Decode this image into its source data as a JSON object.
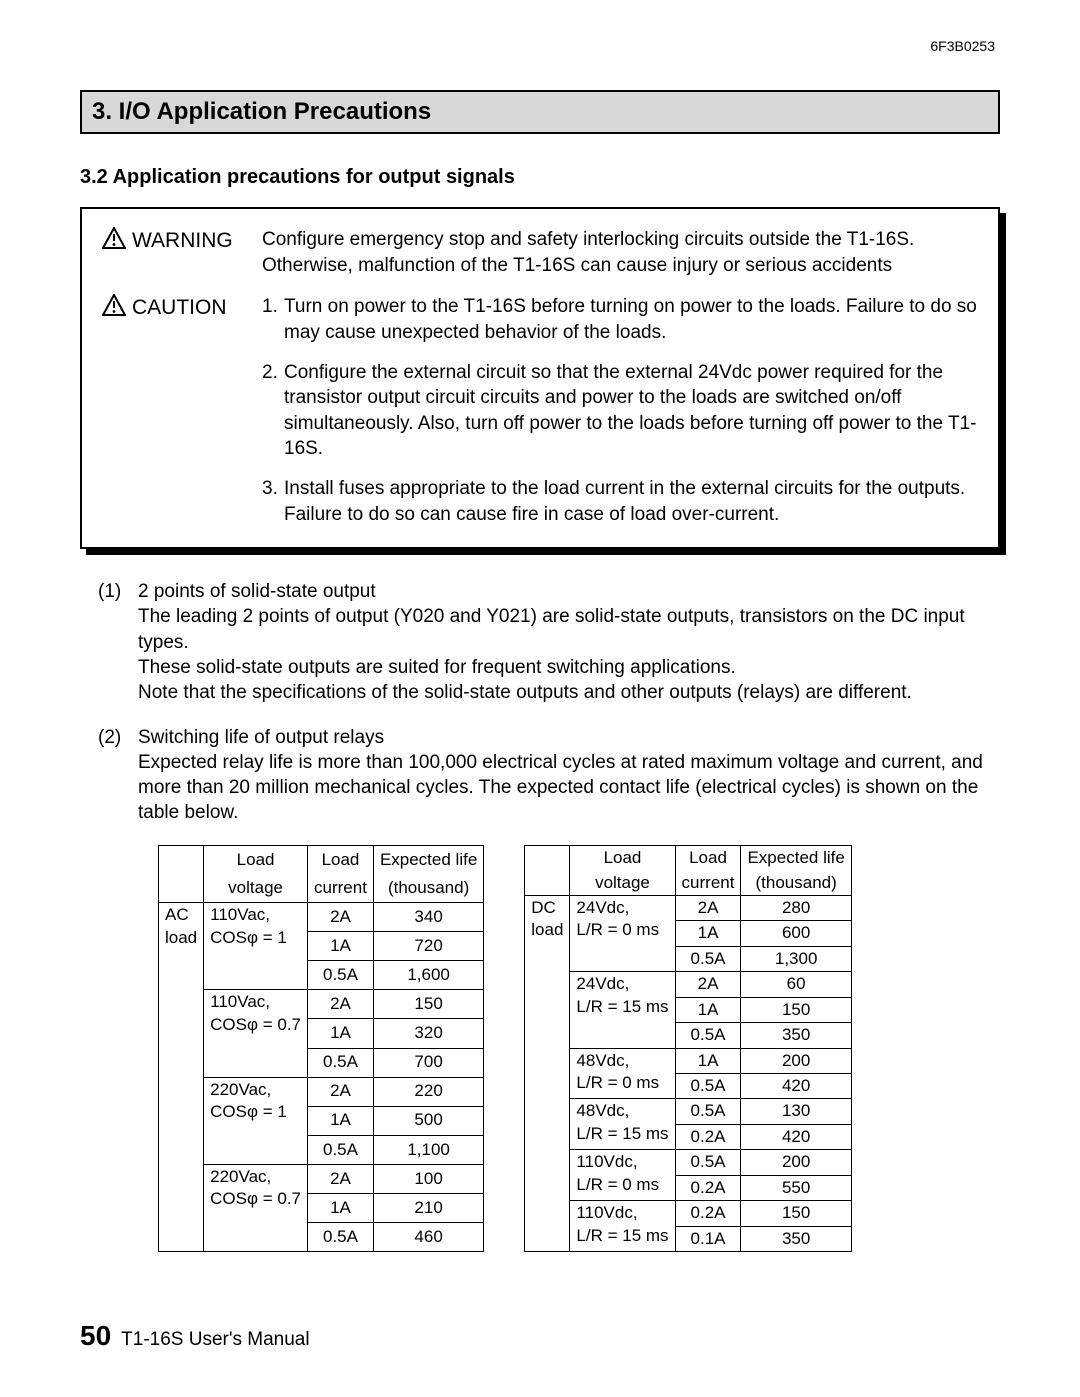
{
  "doc_ref": "6F3B0253",
  "chapter_heading": "3. I/O Application Precautions",
  "section_heading": "3.2  Application precautions for output signals",
  "warning": {
    "label": "WARNING",
    "text": "Configure emergency stop and safety interlocking circuits outside the T1-16S. Otherwise, malfunction of the T1-16S can cause injury or serious accidents"
  },
  "caution": {
    "label": "CAUTION",
    "items": [
      "Turn on power to the T1-16S before turning on power to the loads. Failure to do so may cause unexpected behavior of the loads.",
      "Configure the external circuit so that the external 24Vdc power required for the transistor output circuit circuits and power to the loads are switched on/off simultaneously. Also, turn off power to the loads before turning off power to the T1-16S.",
      "Install fuses appropriate to the load current in the external circuits for the outputs. Failure to do so can cause fire in case of load over-current."
    ]
  },
  "paragraphs": [
    {
      "num": "(1)",
      "title": "2 points of solid-state output",
      "body": "The leading 2 points of output (Y020 and Y021) are solid-state outputs, transistors on the DC input types.\nThese solid-state outputs are suited for frequent switching applications.\nNote that the specifications of the solid-state outputs and other outputs (relays) are different."
    },
    {
      "num": "(2)",
      "title": "Switching life of output relays",
      "body": "Expected relay life is more than 100,000 electrical cycles at rated maximum voltage and current, and more than 20 million mechanical cycles. The expected contact life (electrical cycles) is shown on the table below."
    }
  ],
  "table_headers": {
    "col1a": "Load",
    "col1b": "voltage",
    "col2a": "Load",
    "col2b": "current",
    "col3a": "Expected life",
    "col3b": "(thousand)"
  },
  "ac_table": {
    "type_a": "AC",
    "type_b": "load",
    "groups": [
      {
        "v1": "110Vac,",
        "v2": "COSφ = 1",
        "rows": [
          [
            "2A",
            "340"
          ],
          [
            "1A",
            "720"
          ],
          [
            "0.5A",
            "1,600"
          ]
        ]
      },
      {
        "v1": "110Vac,",
        "v2": "COSφ = 0.7",
        "rows": [
          [
            "2A",
            "150"
          ],
          [
            "1A",
            "320"
          ],
          [
            "0.5A",
            "700"
          ]
        ]
      },
      {
        "v1": "220Vac,",
        "v2": "COSφ = 1",
        "rows": [
          [
            "2A",
            "220"
          ],
          [
            "1A",
            "500"
          ],
          [
            "0.5A",
            "1,100"
          ]
        ]
      },
      {
        "v1": "220Vac,",
        "v2": "COSφ = 0.7",
        "rows": [
          [
            "2A",
            "100"
          ],
          [
            "1A",
            "210"
          ],
          [
            "0.5A",
            "460"
          ]
        ]
      }
    ]
  },
  "dc_table": {
    "type_a": "DC",
    "type_b": "load",
    "groups": [
      {
        "v1": "24Vdc,",
        "v2": "L/R = 0 ms",
        "rows": [
          [
            "2A",
            "280"
          ],
          [
            "1A",
            "600"
          ],
          [
            "0.5A",
            "1,300"
          ]
        ]
      },
      {
        "v1": "24Vdc,",
        "v2": "L/R = 15 ms",
        "rows": [
          [
            "2A",
            "60"
          ],
          [
            "1A",
            "150"
          ],
          [
            "0.5A",
            "350"
          ]
        ]
      },
      {
        "v1": "48Vdc,",
        "v2": "L/R = 0 ms",
        "rows": [
          [
            "1A",
            "200"
          ],
          [
            "0.5A",
            "420"
          ]
        ]
      },
      {
        "v1": "48Vdc,",
        "v2": "L/R = 15 ms",
        "rows": [
          [
            "0.5A",
            "130"
          ],
          [
            "0.2A",
            "420"
          ]
        ]
      },
      {
        "v1": "110Vdc,",
        "v2": "L/R = 0 ms",
        "rows": [
          [
            "0.5A",
            "200"
          ],
          [
            "0.2A",
            "550"
          ]
        ]
      },
      {
        "v1": "110Vdc,",
        "v2": "L/R = 15 ms",
        "rows": [
          [
            "0.2A",
            "150"
          ],
          [
            "0.1A",
            "350"
          ]
        ]
      }
    ]
  },
  "footer": {
    "page_number": "50",
    "title": "T1-16S User's Manual"
  }
}
